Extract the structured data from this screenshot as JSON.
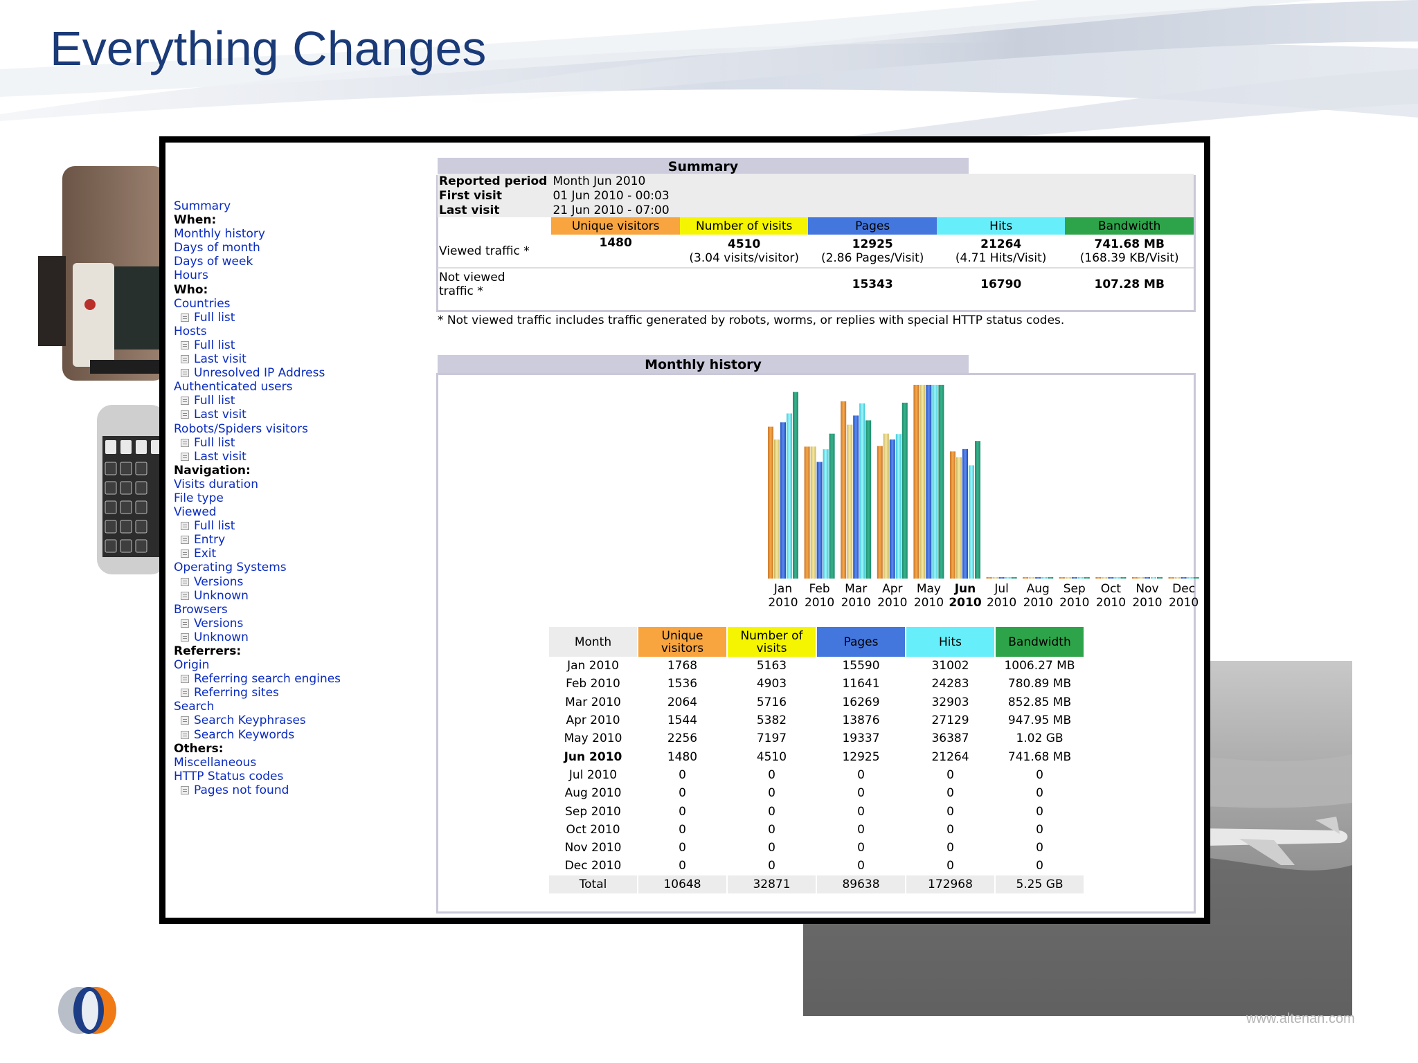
{
  "slide": {
    "title": "Everything Changes",
    "watermark": "www.altenan.com"
  },
  "colors": {
    "unique": "#f8a43f",
    "visits": "#f5f502",
    "pages": "#4477dd",
    "hits": "#66eefa",
    "bandwidth": "#2ea44a",
    "section_bg": "#ccccdd",
    "link": "#0a2bbf",
    "title": "#1a3a78"
  },
  "sidebar": {
    "items": [
      {
        "text": "Summary",
        "type": "link"
      },
      {
        "text": "When:",
        "type": "heading"
      },
      {
        "text": "Monthly history",
        "type": "link"
      },
      {
        "text": "Days of month",
        "type": "link"
      },
      {
        "text": "Days of week",
        "type": "link"
      },
      {
        "text": "Hours",
        "type": "link"
      },
      {
        "text": "Who:",
        "type": "heading"
      },
      {
        "text": "Countries",
        "type": "link"
      },
      {
        "text": "Full list",
        "type": "sub"
      },
      {
        "text": "Hosts",
        "type": "link"
      },
      {
        "text": "Full list",
        "type": "sub"
      },
      {
        "text": "Last visit",
        "type": "sub"
      },
      {
        "text": "Unresolved IP Address",
        "type": "sub"
      },
      {
        "text": "Authenticated users",
        "type": "link"
      },
      {
        "text": "Full list",
        "type": "sub"
      },
      {
        "text": "Last visit",
        "type": "sub"
      },
      {
        "text": "Robots/Spiders visitors",
        "type": "link"
      },
      {
        "text": "Full list",
        "type": "sub"
      },
      {
        "text": "Last visit",
        "type": "sub"
      },
      {
        "text": "Navigation:",
        "type": "heading"
      },
      {
        "text": "Visits duration",
        "type": "link"
      },
      {
        "text": "File type",
        "type": "link"
      },
      {
        "text": "Viewed",
        "type": "link"
      },
      {
        "text": "Full list",
        "type": "sub"
      },
      {
        "text": "Entry",
        "type": "sub"
      },
      {
        "text": "Exit",
        "type": "sub"
      },
      {
        "text": "Operating Systems",
        "type": "link"
      },
      {
        "text": "Versions",
        "type": "sub"
      },
      {
        "text": "Unknown",
        "type": "sub"
      },
      {
        "text": "Browsers",
        "type": "link"
      },
      {
        "text": "Versions",
        "type": "sub"
      },
      {
        "text": "Unknown",
        "type": "sub"
      },
      {
        "text": "Referrers:",
        "type": "heading"
      },
      {
        "text": "Origin",
        "type": "link"
      },
      {
        "text": "Referring search engines",
        "type": "sub"
      },
      {
        "text": "Referring sites",
        "type": "sub"
      },
      {
        "text": "Search",
        "type": "link"
      },
      {
        "text": "Search Keyphrases",
        "type": "sub"
      },
      {
        "text": "Search Keywords",
        "type": "sub"
      },
      {
        "text": "Others:",
        "type": "heading"
      },
      {
        "text": "Miscellaneous",
        "type": "link"
      },
      {
        "text": "HTTP Status codes",
        "type": "link"
      },
      {
        "text": "Pages not found",
        "type": "sub"
      }
    ]
  },
  "summary": {
    "title": "Summary",
    "reported_period_label": "Reported period",
    "reported_period_value": "Month Jun 2010",
    "first_visit_label": "First visit",
    "first_visit_value": "01 Jun 2010 - 00:03",
    "last_visit_label": "Last visit",
    "last_visit_value": "21 Jun 2010 - 07:00",
    "headers": [
      "Unique visitors",
      "Number of visits",
      "Pages",
      "Hits",
      "Bandwidth"
    ],
    "viewed_label": "Viewed traffic *",
    "viewed": {
      "unique": "1480",
      "visits": "4510",
      "visits_sub": "(3.04 visits/visitor)",
      "pages": "12925",
      "pages_sub": "(2.86 Pages/Visit)",
      "hits": "21264",
      "hits_sub": "(4.71 Hits/Visit)",
      "bandwidth": "741.68 MB",
      "bandwidth_sub": "(168.39 KB/Visit)"
    },
    "not_viewed_label_1": "Not viewed",
    "not_viewed_label_2": "traffic *",
    "not_viewed": {
      "pages": "15343",
      "hits": "16790",
      "bandwidth": "107.28 MB"
    },
    "note": "* Not viewed traffic includes traffic generated by robots, worms, or replies with special HTTP status codes."
  },
  "monthly": {
    "title": "Monthly history",
    "headers": [
      "Month",
      "Unique visitors",
      "Number of visits",
      "Pages",
      "Hits",
      "Bandwidth"
    ],
    "header_lines": [
      [
        "Month"
      ],
      [
        "Unique",
        "visitors"
      ],
      [
        "Number of",
        "visits"
      ],
      [
        "Pages"
      ],
      [
        "Hits"
      ],
      [
        "Bandwidth"
      ]
    ],
    "rows": [
      [
        "Jan 2010",
        "1768",
        "5163",
        "15590",
        "31002",
        "1006.27 MB"
      ],
      [
        "Feb 2010",
        "1536",
        "4903",
        "11641",
        "24283",
        "780.89 MB"
      ],
      [
        "Mar 2010",
        "2064",
        "5716",
        "16269",
        "32903",
        "852.85 MB"
      ],
      [
        "Apr 2010",
        "1544",
        "5382",
        "13876",
        "27129",
        "947.95 MB"
      ],
      [
        "May 2010",
        "2256",
        "7197",
        "19337",
        "36387",
        "1.02 GB"
      ],
      [
        "Jun 2010",
        "1480",
        "4510",
        "12925",
        "21264",
        "741.68 MB"
      ],
      [
        "Jul 2010",
        "0",
        "0",
        "0",
        "0",
        "0"
      ],
      [
        "Aug 2010",
        "0",
        "0",
        "0",
        "0",
        "0"
      ],
      [
        "Sep 2010",
        "0",
        "0",
        "0",
        "0",
        "0"
      ],
      [
        "Oct 2010",
        "0",
        "0",
        "0",
        "0",
        "0"
      ],
      [
        "Nov 2010",
        "0",
        "0",
        "0",
        "0",
        "0"
      ],
      [
        "Dec 2010",
        "0",
        "0",
        "0",
        "0",
        "0"
      ]
    ],
    "current_row": 5,
    "total": [
      "Total",
      "10648",
      "32871",
      "89638",
      "172968",
      "5.25 GB"
    ]
  },
  "chart_data": {
    "type": "bar",
    "categories": [
      "Jan",
      "Feb",
      "Mar",
      "Apr",
      "May",
      "Jun",
      "Jul",
      "Aug",
      "Sep",
      "Oct",
      "Nov",
      "Dec"
    ],
    "category_years": [
      "2010",
      "2010",
      "2010",
      "2010",
      "2010",
      "2010",
      "2010",
      "2010",
      "2010",
      "2010",
      "2010",
      "2010"
    ],
    "highlight_category": "Jun",
    "series": [
      {
        "name": "Unique visitors",
        "values": [
          1768,
          1536,
          2064,
          1544,
          2256,
          1480,
          0,
          0,
          0,
          0,
          0,
          0
        ]
      },
      {
        "name": "Number of visits",
        "values": [
          5163,
          4903,
          5716,
          5382,
          7197,
          4510,
          0,
          0,
          0,
          0,
          0,
          0
        ]
      },
      {
        "name": "Pages",
        "values": [
          15590,
          11641,
          16269,
          13876,
          19337,
          12925,
          0,
          0,
          0,
          0,
          0,
          0
        ]
      },
      {
        "name": "Hits",
        "values": [
          31002,
          24283,
          32903,
          27129,
          36387,
          21264,
          0,
          0,
          0,
          0,
          0,
          0
        ]
      },
      {
        "name": "Bandwidth",
        "values": [
          1006.27,
          780.89,
          852.85,
          947.95,
          1044.48,
          741.68,
          0,
          0,
          0,
          0,
          0,
          0
        ]
      }
    ],
    "legend": "none",
    "grid": false
  }
}
